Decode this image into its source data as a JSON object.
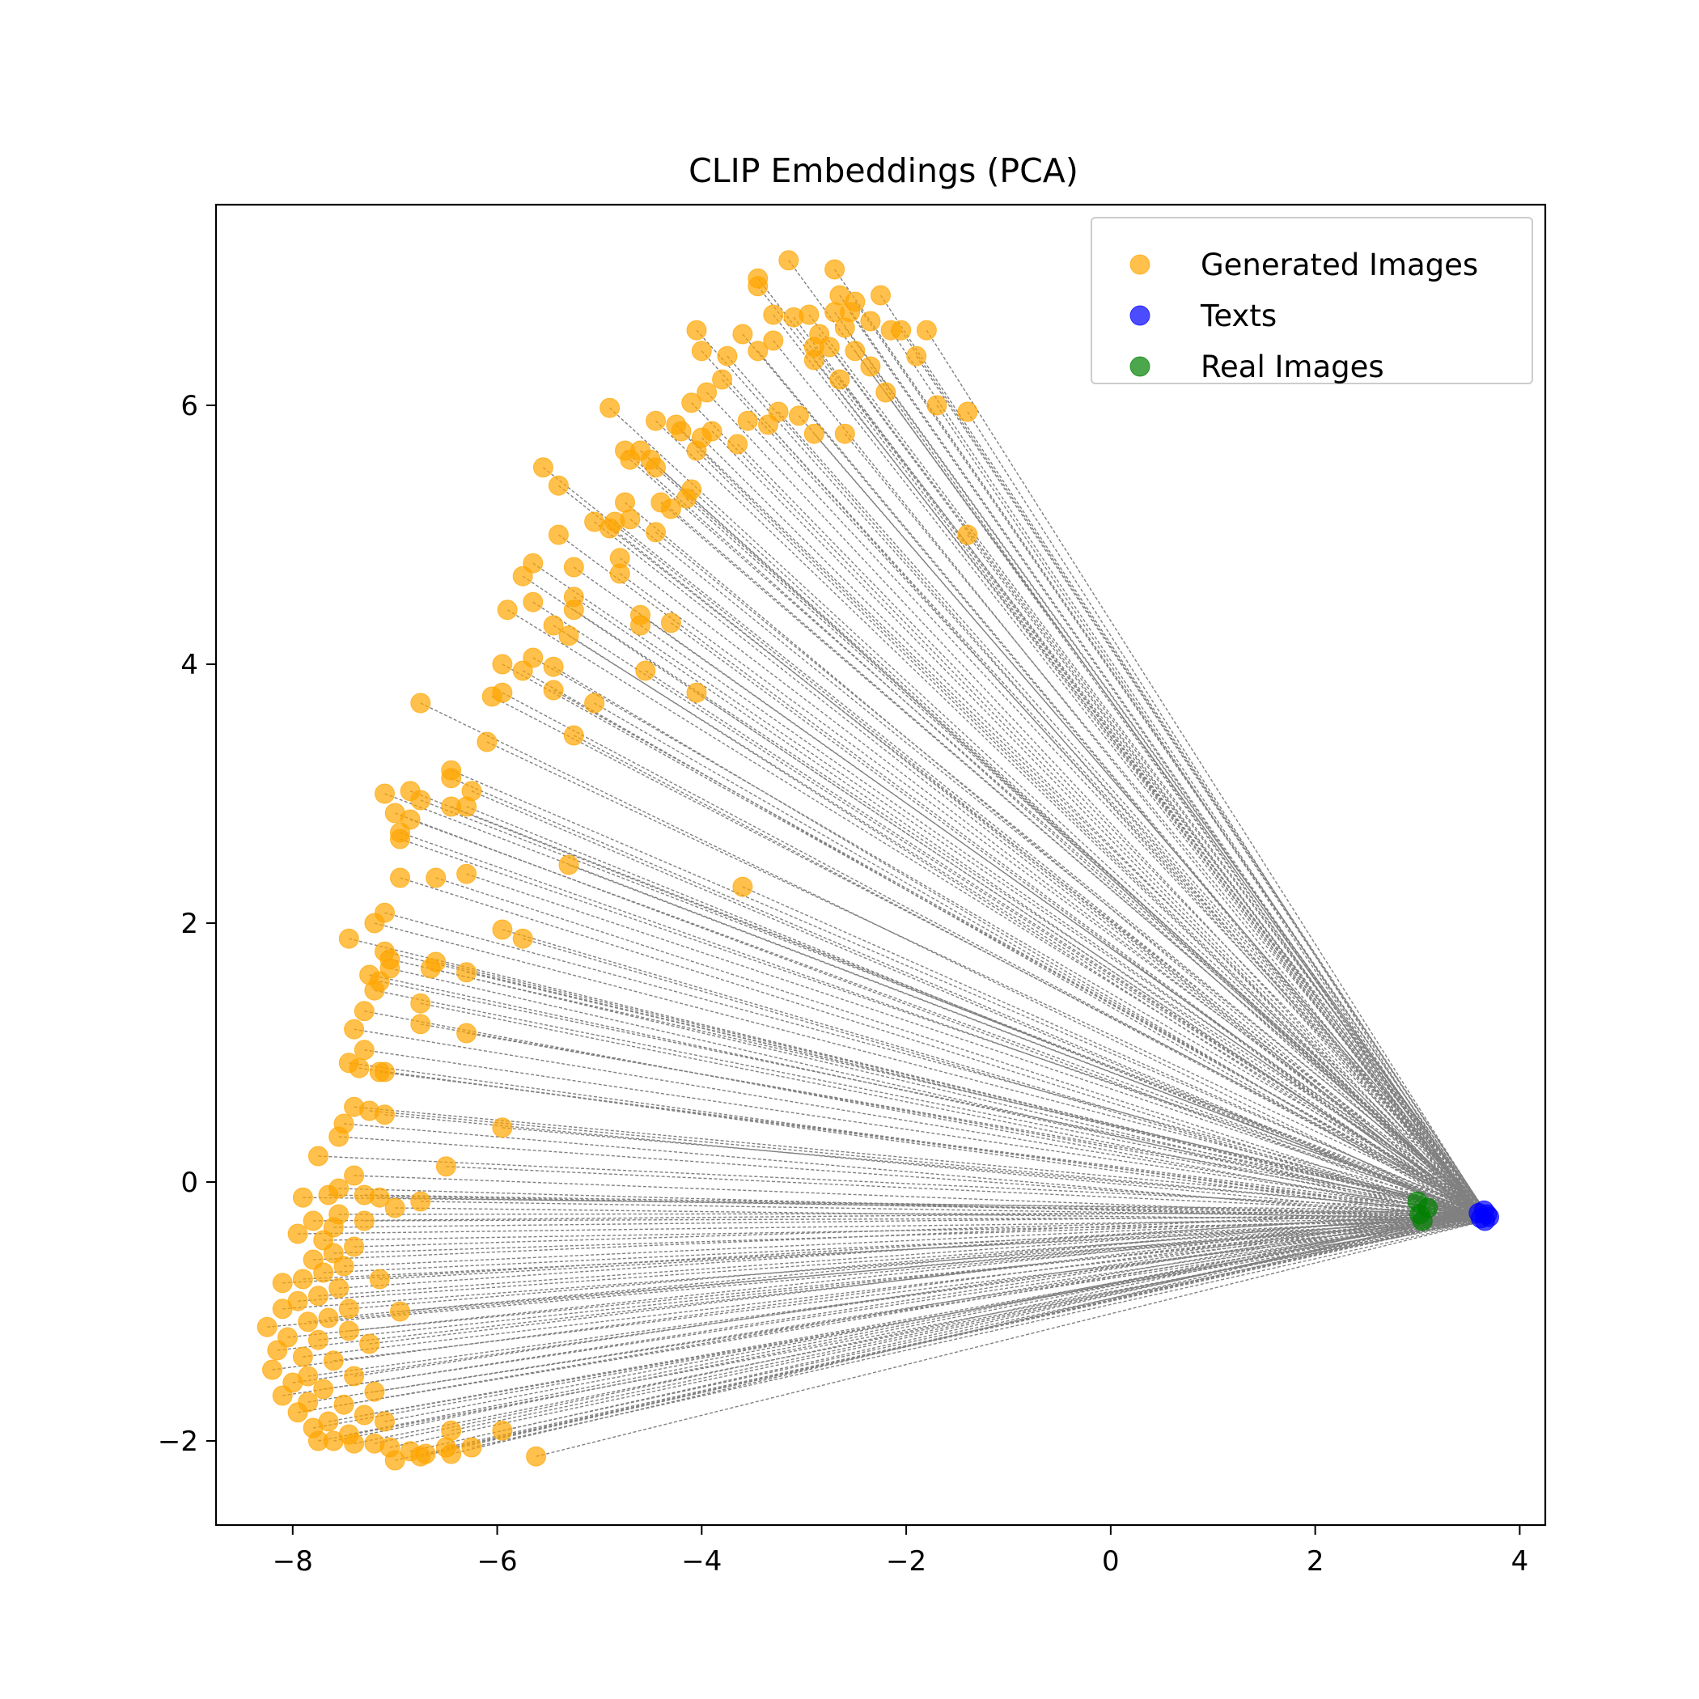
{
  "chart_data": {
    "type": "scatter",
    "title": "CLIP Embeddings (PCA)",
    "xlabel": "",
    "ylabel": "",
    "xlim": [
      -8.75,
      4.25
    ],
    "ylim": [
      -2.65,
      7.55
    ],
    "xticks": [
      -8,
      -6,
      -4,
      -2,
      0,
      2,
      4
    ],
    "yticks": [
      -2,
      0,
      2,
      4,
      6
    ],
    "legend_position": "upper right",
    "grid": false,
    "connector_style": "gray dashed lines from each generated image to its text embedding",
    "series": [
      {
        "name": "Generated Images",
        "color": "#ffa500",
        "points": [
          [
            -3.15,
            7.12
          ],
          [
            -2.7,
            7.05
          ],
          [
            -3.45,
            6.98
          ],
          [
            -3.45,
            6.92
          ],
          [
            -2.65,
            6.85
          ],
          [
            -2.25,
            6.85
          ],
          [
            -2.5,
            6.8
          ],
          [
            -2.7,
            6.72
          ],
          [
            -2.55,
            6.72
          ],
          [
            -3.3,
            6.7
          ],
          [
            -3.1,
            6.68
          ],
          [
            -2.95,
            6.7
          ],
          [
            -2.35,
            6.65
          ],
          [
            -2.6,
            6.6
          ],
          [
            -3.6,
            6.55
          ],
          [
            -2.85,
            6.55
          ],
          [
            -2.15,
            6.58
          ],
          [
            -2.05,
            6.58
          ],
          [
            -1.8,
            6.58
          ],
          [
            -4.05,
            6.58
          ],
          [
            -3.3,
            6.5
          ],
          [
            -3.45,
            6.42
          ],
          [
            -2.9,
            6.45
          ],
          [
            -2.75,
            6.45
          ],
          [
            -2.5,
            6.42
          ],
          [
            -1.9,
            6.38
          ],
          [
            -3.75,
            6.38
          ],
          [
            -4.0,
            6.42
          ],
          [
            -2.35,
            6.3
          ],
          [
            -3.8,
            6.2
          ],
          [
            -2.9,
            6.35
          ],
          [
            -2.65,
            6.2
          ],
          [
            -3.95,
            6.1
          ],
          [
            -2.2,
            6.1
          ],
          [
            -4.1,
            6.02
          ],
          [
            -4.9,
            5.98
          ],
          [
            -3.25,
            5.95
          ],
          [
            -3.05,
            5.92
          ],
          [
            -1.7,
            6.0
          ],
          [
            -1.4,
            5.95
          ],
          [
            -4.45,
            5.88
          ],
          [
            -3.55,
            5.88
          ],
          [
            -3.35,
            5.85
          ],
          [
            -4.25,
            5.85
          ],
          [
            -3.9,
            5.8
          ],
          [
            -4.2,
            5.8
          ],
          [
            -4.0,
            5.75
          ],
          [
            -3.65,
            5.7
          ],
          [
            -2.9,
            5.78
          ],
          [
            -2.6,
            5.78
          ],
          [
            -4.05,
            5.65
          ],
          [
            -4.75,
            5.65
          ],
          [
            -4.6,
            5.65
          ],
          [
            -4.5,
            5.58
          ],
          [
            -4.7,
            5.58
          ],
          [
            -4.45,
            5.52
          ],
          [
            -5.55,
            5.52
          ],
          [
            -5.4,
            5.38
          ],
          [
            -4.1,
            5.35
          ],
          [
            -4.15,
            5.28
          ],
          [
            -4.4,
            5.25
          ],
          [
            -4.3,
            5.2
          ],
          [
            -4.75,
            5.25
          ],
          [
            -5.05,
            5.1
          ],
          [
            -4.85,
            5.1
          ],
          [
            -4.9,
            5.05
          ],
          [
            -4.7,
            5.12
          ],
          [
            -4.45,
            5.02
          ],
          [
            -5.4,
            5.0
          ],
          [
            -1.4,
            5.0
          ],
          [
            -4.8,
            4.82
          ],
          [
            -5.25,
            4.75
          ],
          [
            -4.8,
            4.7
          ],
          [
            -5.65,
            4.78
          ],
          [
            -5.75,
            4.68
          ],
          [
            -5.25,
            4.52
          ],
          [
            -5.65,
            4.48
          ],
          [
            -5.9,
            4.42
          ],
          [
            -5.25,
            4.42
          ],
          [
            -4.6,
            4.38
          ],
          [
            -4.3,
            4.32
          ],
          [
            -5.45,
            4.3
          ],
          [
            -4.6,
            4.3
          ],
          [
            -5.3,
            4.22
          ],
          [
            -5.65,
            4.05
          ],
          [
            -5.95,
            4.0
          ],
          [
            -5.45,
            3.98
          ],
          [
            -5.75,
            3.95
          ],
          [
            -4.55,
            3.95
          ],
          [
            -5.95,
            3.78
          ],
          [
            -6.05,
            3.75
          ],
          [
            -5.45,
            3.8
          ],
          [
            -4.05,
            3.78
          ],
          [
            -6.75,
            3.7
          ],
          [
            -5.05,
            3.7
          ],
          [
            -5.25,
            3.45
          ],
          [
            -6.1,
            3.4
          ],
          [
            -6.45,
            3.18
          ],
          [
            -6.45,
            3.12
          ],
          [
            -6.25,
            3.02
          ],
          [
            -6.85,
            3.02
          ],
          [
            -7.1,
            3.0
          ],
          [
            -6.75,
            2.95
          ],
          [
            -6.45,
            2.9
          ],
          [
            -6.3,
            2.9
          ],
          [
            -7.0,
            2.85
          ],
          [
            -6.85,
            2.8
          ],
          [
            -6.95,
            2.7
          ],
          [
            -6.95,
            2.65
          ],
          [
            -6.3,
            2.38
          ],
          [
            -6.6,
            2.35
          ],
          [
            -6.95,
            2.35
          ],
          [
            -5.3,
            2.45
          ],
          [
            -3.6,
            2.28
          ],
          [
            -7.1,
            2.08
          ],
          [
            -7.2,
            2.0
          ],
          [
            -5.95,
            1.95
          ],
          [
            -5.75,
            1.88
          ],
          [
            -7.45,
            1.88
          ],
          [
            -7.1,
            1.78
          ],
          [
            -7.05,
            1.72
          ],
          [
            -6.6,
            1.7
          ],
          [
            -6.65,
            1.65
          ],
          [
            -7.05,
            1.65
          ],
          [
            -6.3,
            1.62
          ],
          [
            -7.25,
            1.6
          ],
          [
            -7.15,
            1.55
          ],
          [
            -7.2,
            1.48
          ],
          [
            -6.75,
            1.38
          ],
          [
            -7.3,
            1.32
          ],
          [
            -6.75,
            1.22
          ],
          [
            -7.4,
            1.18
          ],
          [
            -6.3,
            1.15
          ],
          [
            -7.3,
            1.02
          ],
          [
            -7.45,
            0.92
          ],
          [
            -7.35,
            0.88
          ],
          [
            -7.15,
            0.85
          ],
          [
            -7.1,
            0.85
          ],
          [
            -7.4,
            0.58
          ],
          [
            -7.25,
            0.55
          ],
          [
            -7.1,
            0.52
          ],
          [
            -7.5,
            0.45
          ],
          [
            -5.95,
            0.42
          ],
          [
            -7.55,
            0.35
          ],
          [
            -7.75,
            0.2
          ],
          [
            -6.5,
            0.12
          ],
          [
            -7.4,
            0.05
          ],
          [
            -7.55,
            -0.05
          ],
          [
            -7.3,
            -0.1
          ],
          [
            -7.65,
            -0.1
          ],
          [
            -7.9,
            -0.12
          ],
          [
            -7.15,
            -0.12
          ],
          [
            -6.75,
            -0.15
          ],
          [
            -7.0,
            -0.2
          ],
          [
            -7.55,
            -0.25
          ],
          [
            -7.3,
            -0.3
          ],
          [
            -7.8,
            -0.3
          ],
          [
            -7.6,
            -0.35
          ],
          [
            -7.95,
            -0.4
          ],
          [
            -7.7,
            -0.45
          ],
          [
            -7.4,
            -0.5
          ],
          [
            -7.6,
            -0.55
          ],
          [
            -7.8,
            -0.6
          ],
          [
            -7.5,
            -0.65
          ],
          [
            -7.7,
            -0.7
          ],
          [
            -7.9,
            -0.75
          ],
          [
            -8.1,
            -0.78
          ],
          [
            -7.15,
            -0.75
          ],
          [
            -7.55,
            -0.82
          ],
          [
            -7.75,
            -0.88
          ],
          [
            -7.95,
            -0.92
          ],
          [
            -8.1,
            -0.98
          ],
          [
            -7.45,
            -0.98
          ],
          [
            -6.95,
            -1.0
          ],
          [
            -7.65,
            -1.05
          ],
          [
            -7.85,
            -1.08
          ],
          [
            -8.25,
            -1.12
          ],
          [
            -7.45,
            -1.15
          ],
          [
            -8.05,
            -1.2
          ],
          [
            -7.75,
            -1.22
          ],
          [
            -7.25,
            -1.25
          ],
          [
            -8.15,
            -1.3
          ],
          [
            -7.9,
            -1.35
          ],
          [
            -7.6,
            -1.38
          ],
          [
            -8.2,
            -1.45
          ],
          [
            -7.85,
            -1.5
          ],
          [
            -7.4,
            -1.5
          ],
          [
            -8.0,
            -1.55
          ],
          [
            -7.7,
            -1.6
          ],
          [
            -7.2,
            -1.62
          ],
          [
            -8.1,
            -1.65
          ],
          [
            -7.85,
            -1.7
          ],
          [
            -7.5,
            -1.72
          ],
          [
            -7.95,
            -1.78
          ],
          [
            -7.3,
            -1.8
          ],
          [
            -7.65,
            -1.85
          ],
          [
            -7.1,
            -1.85
          ],
          [
            -7.8,
            -1.9
          ],
          [
            -7.45,
            -1.95
          ],
          [
            -6.45,
            -1.92
          ],
          [
            -5.95,
            -1.92
          ],
          [
            -7.75,
            -2.0
          ],
          [
            -7.6,
            -2.0
          ],
          [
            -7.4,
            -2.02
          ],
          [
            -7.2,
            -2.02
          ],
          [
            -7.05,
            -2.05
          ],
          [
            -6.5,
            -2.05
          ],
          [
            -6.25,
            -2.05
          ],
          [
            -6.85,
            -2.08
          ],
          [
            -6.7,
            -2.1
          ],
          [
            -6.45,
            -2.1
          ],
          [
            -6.75,
            -2.12
          ],
          [
            -7.0,
            -2.15
          ],
          [
            -5.62,
            -2.12
          ]
        ]
      },
      {
        "name": "Texts",
        "color": "#0000ff",
        "points": [
          [
            3.65,
            -0.22
          ],
          [
            3.68,
            -0.25
          ],
          [
            3.62,
            -0.28
          ],
          [
            3.66,
            -0.3
          ],
          [
            3.6,
            -0.24
          ],
          [
            3.7,
            -0.27
          ]
        ]
      },
      {
        "name": "Real Images",
        "color": "#008000",
        "points": [
          [
            3.0,
            -0.15
          ],
          [
            3.05,
            -0.3
          ],
          [
            3.1,
            -0.2
          ],
          [
            3.02,
            -0.25
          ]
        ]
      }
    ]
  }
}
